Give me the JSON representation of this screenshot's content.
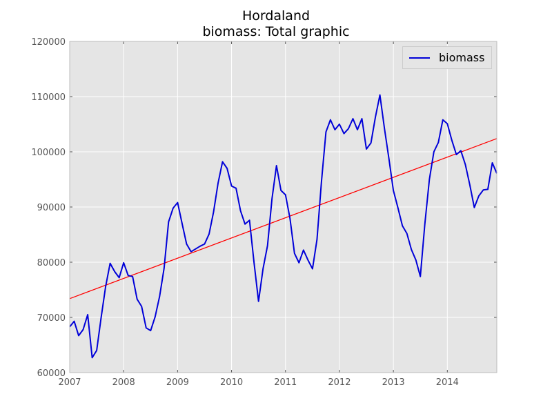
{
  "chart_data": {
    "type": "line",
    "title": "Hordaland",
    "subtitle": "biomass: Total graphic",
    "xlim": [
      2007.0,
      2014.9167
    ],
    "ylim": [
      60000,
      120000
    ],
    "x_ticks": [
      "2007",
      "2008",
      "2009",
      "2010",
      "2011",
      "2012",
      "2013",
      "2014"
    ],
    "y_ticks": [
      "60000",
      "70000",
      "80000",
      "90000",
      "100000",
      "110000",
      "120000"
    ],
    "grid": true,
    "legend_position": "top-right",
    "series": [
      {
        "name": "biomass",
        "color": "#0000d8",
        "x": [
          2007.0,
          2007.0833,
          2007.1667,
          2007.25,
          2007.3333,
          2007.4167,
          2007.5,
          2007.5833,
          2007.6667,
          2007.75,
          2007.8333,
          2007.9167,
          2008.0,
          2008.0833,
          2008.1667,
          2008.25,
          2008.3333,
          2008.4167,
          2008.5,
          2008.5833,
          2008.6667,
          2008.75,
          2008.8333,
          2008.9167,
          2009.0,
          2009.0833,
          2009.1667,
          2009.25,
          2009.3333,
          2009.4167,
          2009.5,
          2009.5833,
          2009.6667,
          2009.75,
          2009.8333,
          2009.9167,
          2010.0,
          2010.0833,
          2010.1667,
          2010.25,
          2010.3333,
          2010.4167,
          2010.5,
          2010.5833,
          2010.6667,
          2010.75,
          2010.8333,
          2010.9167,
          2011.0,
          2011.0833,
          2011.1667,
          2011.25,
          2011.3333,
          2011.4167,
          2011.5,
          2011.5833,
          2011.6667,
          2011.75,
          2011.8333,
          2011.9167,
          2012.0,
          2012.0833,
          2012.1667,
          2012.25,
          2012.3333,
          2012.4167,
          2012.5,
          2012.5833,
          2012.6667,
          2012.75,
          2012.8333,
          2012.9167,
          2013.0,
          2013.0833,
          2013.1667,
          2013.25,
          2013.3333,
          2013.4167,
          2013.5,
          2013.5833,
          2013.6667,
          2013.75,
          2013.8333,
          2013.9167,
          2014.0,
          2014.0833,
          2014.1667,
          2014.25,
          2014.3333,
          2014.4167,
          2014.5,
          2014.5833,
          2014.6667,
          2014.75,
          2014.8333,
          2014.9167
        ],
        "values": [
          68300,
          69300,
          66700,
          67800,
          70500,
          62700,
          64000,
          70000,
          75600,
          79800,
          78300,
          77200,
          79900,
          77600,
          77400,
          73300,
          72000,
          68100,
          67600,
          70100,
          73800,
          78900,
          87300,
          89800,
          90800,
          87000,
          83300,
          81900,
          82400,
          82900,
          83300,
          85100,
          89100,
          94300,
          98200,
          97000,
          93800,
          93400,
          89300,
          86900,
          87600,
          80000,
          72900,
          78800,
          83000,
          91500,
          97500,
          93000,
          92200,
          87900,
          81600,
          79900,
          82200,
          80400,
          78800,
          84100,
          94600,
          103600,
          105800,
          104000,
          105000,
          103300,
          104200,
          106000,
          104000,
          106000,
          100500,
          101600,
          106300,
          110300,
          104300,
          98800,
          93000,
          89900,
          86600,
          85200,
          82300,
          80400,
          77400,
          86900,
          95000,
          100000,
          101700,
          105800,
          105100,
          102100,
          99500,
          100200,
          97700,
          94000,
          89900,
          92000,
          93100,
          93200,
          98000,
          96100
        ]
      },
      {
        "color": "#ff0000",
        "x": [
          2007.0,
          2014.9167
        ],
        "values": [
          73400,
          102400
        ]
      }
    ]
  }
}
